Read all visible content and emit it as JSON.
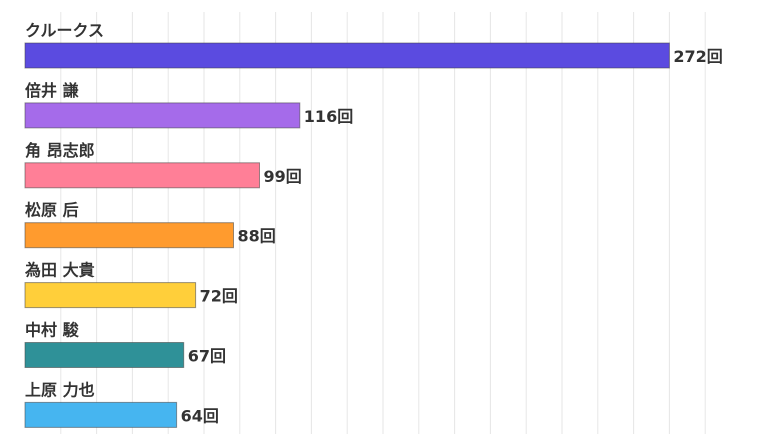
{
  "chart_data": {
    "type": "bar",
    "orientation": "horizontal",
    "categories": [
      "クルークス",
      "倍井 謙",
      "角 昂志郎",
      "松原 后",
      "為田 大貴",
      "中村 駿",
      "上原 力也"
    ],
    "values": [
      272,
      116,
      99,
      88,
      72,
      67,
      64
    ],
    "value_labels": [
      "272回",
      "116回",
      "99回",
      "88回",
      "72回",
      "67回",
      "64回"
    ],
    "colors": [
      "#5b4be0",
      "#a56bea",
      "#ff7f97",
      "#ff9b2e",
      "#ffcf3a",
      "#2f9198",
      "#46b5f0"
    ],
    "xlim": [
      0,
      290
    ],
    "grid": true,
    "title": "",
    "xlabel": "",
    "ylabel": ""
  }
}
